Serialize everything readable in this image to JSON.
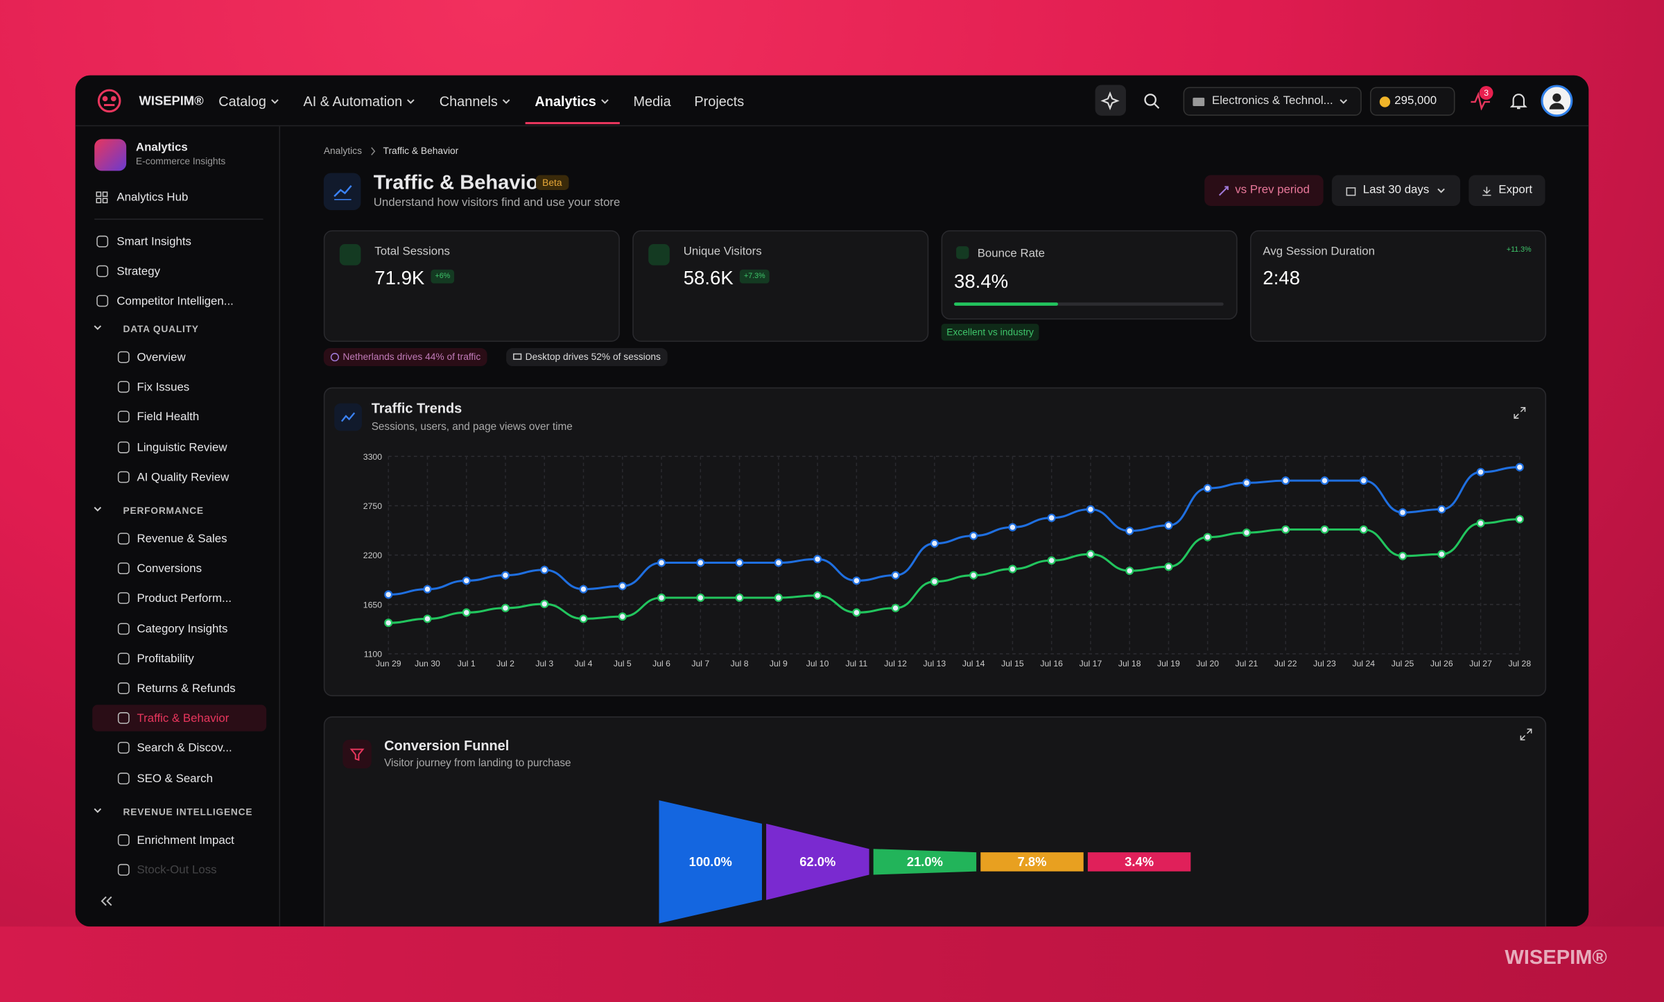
{
  "brand": "WISEPIM®",
  "nav": [
    "Catalog",
    "AI & Automation",
    "Channels",
    "Analytics",
    "Media",
    "Projects"
  ],
  "nav_active": 3,
  "topbar": {
    "workspace": "Electronics & Technol...",
    "credits": "295,000",
    "notifications": "3"
  },
  "sidebar": {
    "app_title": "Analytics",
    "app_subtitle": "E-commerce Insights",
    "hub": "Analytics Hub",
    "items": [
      "Smart Insights",
      "Strategy",
      "Competitor Intelligen..."
    ],
    "sections": [
      {
        "title": "DATA QUALITY",
        "items": [
          "Overview",
          "Fix Issues",
          "Field Health",
          "Linguistic Review",
          "AI Quality Review"
        ]
      },
      {
        "title": "PERFORMANCE",
        "items": [
          "Revenue & Sales",
          "Conversions",
          "Product Perform...",
          "Category Insights",
          "Profitability",
          "Returns & Refunds",
          "Traffic & Behavior",
          "Search & Discov...",
          "SEO & Search"
        ]
      },
      {
        "title": "REVENUE INTELLIGENCE",
        "items": [
          "Enrichment Impact",
          "Stock-Out Loss"
        ]
      }
    ],
    "active": "Traffic & Behavior"
  },
  "breadcrumb": [
    "Analytics",
    "Traffic & Behavior"
  ],
  "header": {
    "title": "Traffic & Behavior",
    "badge": "Beta",
    "subtitle": "Understand how visitors find and use your store",
    "compare": "vs Prev period",
    "range": "Last 30 days",
    "export": "Export"
  },
  "kpis": [
    {
      "label": "Total Sessions",
      "value": "71.9K",
      "change": "+6%"
    },
    {
      "label": "Unique Visitors",
      "value": "58.6K",
      "change": "+7.3%"
    },
    {
      "label": "Bounce Rate",
      "value": "38.4%",
      "progress": 38.4,
      "note": "Excellent vs industry"
    },
    {
      "label": "Avg Session Duration",
      "value": "2:48",
      "change": "+11.3%"
    }
  ],
  "insights": [
    "Netherlands drives 44% of traffic",
    "Desktop drives 52% of sessions"
  ],
  "traffic_trends": {
    "type": "line",
    "title": "Traffic Trends",
    "subtitle": "Sessions, users, and page views over time",
    "x": [
      "Jun 29",
      "Jun 30",
      "Jul 1",
      "Jul 2",
      "Jul 3",
      "Jul 4",
      "Jul 5",
      "Jul 6",
      "Jul 7",
      "Jul 8",
      "Jul 9",
      "Jul 10",
      "Jul 11",
      "Jul 12",
      "Jul 13",
      "Jul 14",
      "Jul 15",
      "Jul 16",
      "Jul 17",
      "Jul 18",
      "Jul 19",
      "Jul 20",
      "Jul 21",
      "Jul 22",
      "Jul 23",
      "Jul 24",
      "Jul 25",
      "Jul 26",
      "Jul 27",
      "Jul 28"
    ],
    "ylim": [
      1100,
      3300
    ],
    "yticks": [
      1100,
      1650,
      2200,
      2750,
      3300
    ],
    "grid": true,
    "series": [
      {
        "color": "#1f6fe0",
        "values": [
          1760,
          1820,
          1915,
          1975,
          2035,
          1820,
          1855,
          2115,
          2115,
          2115,
          2115,
          2155,
          1915,
          1975,
          2330,
          2415,
          2510,
          2615,
          2710,
          2470,
          2530,
          2945,
          3005,
          3030,
          3030,
          3030,
          2675,
          2710,
          3125,
          3180
        ]
      },
      {
        "color": "#22c55e",
        "values": [
          1445,
          1490,
          1560,
          1610,
          1655,
          1490,
          1515,
          1725,
          1725,
          1725,
          1725,
          1750,
          1560,
          1610,
          1905,
          1975,
          2045,
          2140,
          2210,
          2025,
          2070,
          2400,
          2450,
          2485,
          2485,
          2485,
          2190,
          2210,
          2555,
          2600
        ]
      }
    ]
  },
  "conversion_funnel": {
    "type": "funnel",
    "title": "Conversion Funnel",
    "subtitle": "Visitor journey from landing to purchase",
    "values": [
      100,
      62,
      21,
      7.8,
      3.4
    ],
    "value_labels": [
      "100.0%",
      "62.0%",
      "21.0%",
      "7.8%",
      "3.4%"
    ],
    "colors": [
      "#1466e0",
      "#7a2ad0",
      "#22b45a",
      "#e8a020",
      "#e0205a"
    ]
  },
  "watermark": "WISEPIM®"
}
